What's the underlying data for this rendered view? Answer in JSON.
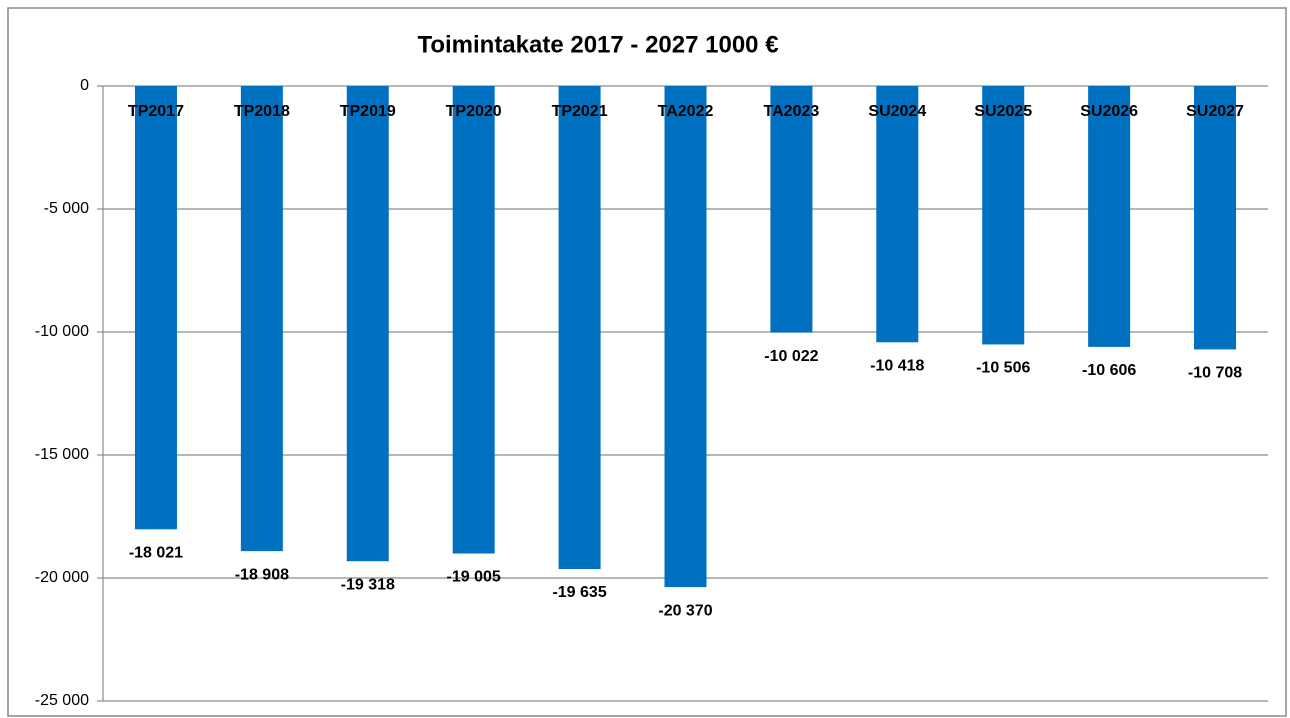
{
  "chart_data": {
    "type": "bar",
    "title": "Toimintakate 2017 - 2027 1000 €",
    "categories": [
      "TP2017",
      "TP2018",
      "TP2019",
      "TP2020",
      "TP2021",
      "TA2022",
      "TA2023",
      "SU2024",
      "SU2025",
      "SU2026",
      "SU2027"
    ],
    "values": [
      -18021,
      -18908,
      -19318,
      -19005,
      -19635,
      -20370,
      -10022,
      -10418,
      -10506,
      -10606,
      -10708
    ],
    "value_labels": [
      "-18 021",
      "-18 908",
      "-19 318",
      "-19 005",
      "-19 635",
      "-20 370",
      "-10 022",
      "-10 418",
      "-10 506",
      "-10 606",
      "-10 708"
    ],
    "color": "#0070c0",
    "ylim": [
      -25000,
      0
    ],
    "yticks": [
      0,
      {
        "value": -5000,
        "label": "-5 000"
      },
      {
        "value": -10000,
        "label": "-10 000"
      },
      {
        "value": -15000,
        "label": "-15 000"
      },
      {
        "value": -20000,
        "label": "-20 000"
      },
      {
        "value": -25000,
        "label": "-25 000"
      }
    ],
    "grid": true
  }
}
